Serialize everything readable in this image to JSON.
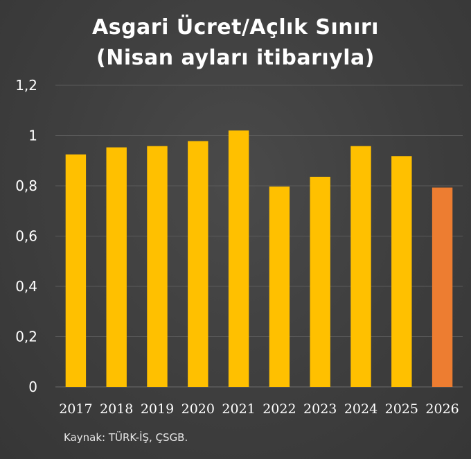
{
  "chart_data": {
    "type": "bar",
    "title": "Asgari Ücret/Açlık Sınırı",
    "subtitle": "(Nisan ayları itibarıyla)",
    "categories": [
      "2017",
      "2018",
      "2019",
      "2020",
      "2021",
      "2022",
      "2023",
      "2024",
      "2025",
      "2026"
    ],
    "values": [
      0.925,
      0.953,
      0.958,
      0.978,
      1.02,
      0.797,
      0.836,
      0.958,
      0.918,
      0.793
    ],
    "bar_colors": [
      "#FFC000",
      "#FFC000",
      "#FFC000",
      "#FFC000",
      "#FFC000",
      "#FFC000",
      "#FFC000",
      "#FFC000",
      "#FFC000",
      "#ED7D31"
    ],
    "ylim": [
      0,
      1.2
    ],
    "yticks": [
      0,
      0.2,
      0.4,
      0.6,
      0.8,
      1,
      1.2
    ],
    "ytick_labels": [
      "0",
      "0,2",
      "0,4",
      "0,6",
      "0,8",
      "1",
      "1,2"
    ],
    "xlabel": "",
    "ylabel": "",
    "grid": true,
    "legend": false,
    "source": "Kaynak: TÜRK-İŞ, ÇSGB.",
    "colors": {
      "background": "#404040",
      "gridline": "#5a5a5a",
      "text": "#ffffff",
      "bar_default": "#FFC000",
      "bar_highlight": "#ED7D31"
    }
  }
}
